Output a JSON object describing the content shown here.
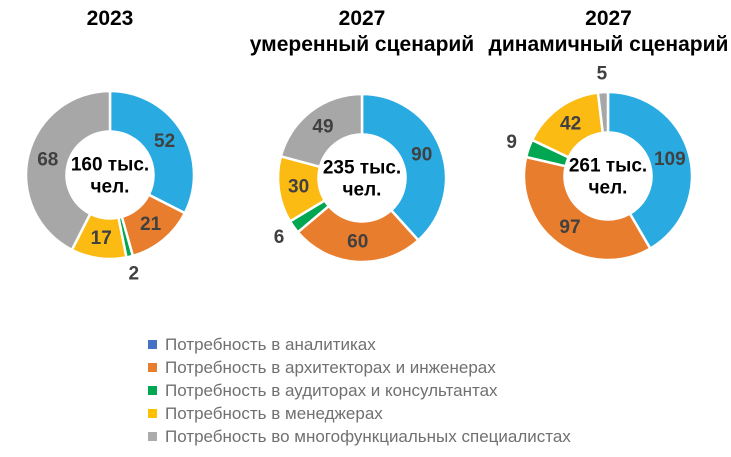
{
  "palette": {
    "background": "#FFFFFF",
    "title_text": "#000000",
    "slice_label_text": "#404040",
    "center_text": "#000000",
    "legend_text": "#707070",
    "slice_border": "#FFFFFF"
  },
  "chart_data": [
    {
      "type": "pie",
      "subtype": "donut",
      "title": "2023",
      "title_line1": "2023",
      "title_line2": "",
      "center_line1": "160 тыс.",
      "center_line2": "чел.",
      "center_label": "160 тыс. чел.",
      "total": 160,
      "start_angle": 0,
      "direction": "clockwise",
      "legend_position": "bottom",
      "categories": [
        "Потребность в аналитиках",
        "Потребность в архитекторах и инженерах",
        "Потребность в аудиторах и консультантах",
        "Потребность в менеджерах",
        "Потребность во многофункциальных специалистах"
      ],
      "values": [
        52,
        21,
        2,
        17,
        68
      ],
      "colors": [
        "#29ABE2",
        "#E87D2E",
        "#00A651",
        "#FBBB13",
        "#A7A7A7"
      ]
    },
    {
      "type": "pie",
      "subtype": "donut",
      "title": "2027 умеренный сценарий",
      "title_line1": "2027",
      "title_line2": "умеренный сценарий",
      "center_line1": "235 тыс.",
      "center_line2": "чел.",
      "center_label": "235 тыс. чел.",
      "total": 235,
      "start_angle": 0,
      "direction": "clockwise",
      "legend_position": "bottom",
      "categories": [
        "Потребность в аналитиках",
        "Потребность в архитекторах и инженерах",
        "Потребность в аудиторах и консультантах",
        "Потребность в менеджерах",
        "Потребность во многофункциальных специалистах"
      ],
      "values": [
        90,
        60,
        6,
        30,
        49
      ],
      "colors": [
        "#29ABE2",
        "#E87D2E",
        "#00A651",
        "#FBBB13",
        "#A7A7A7"
      ]
    },
    {
      "type": "pie",
      "subtype": "donut",
      "title": "2027 динамичный сценарий",
      "title_line1": "2027",
      "title_line2": "динамичный сценарий",
      "center_line1": "261 тыс.",
      "center_line2": "чел.",
      "center_label": "261 тыс. чел.",
      "total": 261,
      "start_angle": 0,
      "direction": "clockwise",
      "legend_position": "bottom",
      "categories": [
        "Потребность в аналитиках",
        "Потребность в архитекторах и инженерах",
        "Потребность в аудиторах и консультантах",
        "Потребность в менеджерах",
        "Потребность во многофункциальных специалистах"
      ],
      "values": [
        109,
        97,
        9,
        42,
        5
      ],
      "colors": [
        "#29ABE2",
        "#E87D2E",
        "#00A651",
        "#FBBB13",
        "#A7A7A7"
      ]
    }
  ],
  "legend": {
    "items": [
      {
        "label": "Потребность в аналитиках",
        "color": "#4472C4"
      },
      {
        "label": "Потребность в архитекторах и инженерах",
        "color": "#E87D2E"
      },
      {
        "label": "Потребность в аудиторах и консультантах",
        "color": "#00A651"
      },
      {
        "label": "Потребность в менеджерах",
        "color": "#FFC000"
      },
      {
        "label": "Потребность во многофункциальных специалистах",
        "color": "#ABABAB"
      }
    ]
  }
}
